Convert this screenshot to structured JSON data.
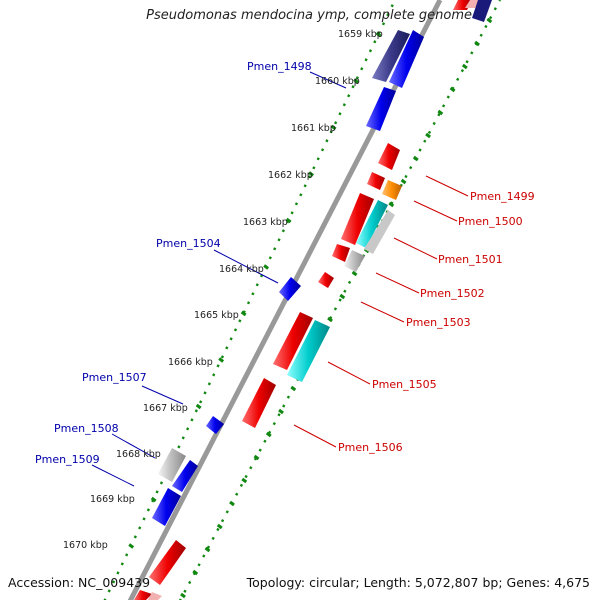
{
  "title": "Pseudomonas mendocina ymp, complete genome",
  "accession": "Accession: NC_009439",
  "summary": "Topology: circular; Length: 5,072,807 bp; Genes: 4,675",
  "colors": {
    "forward_gene": "#0000ee",
    "reverse_gene": "#ee0000",
    "rna_gene": "#00cccc",
    "other_gene": "#ff8c00",
    "pseudo_gene": "#bbbbbb",
    "dark_gene": "#2a2a8a",
    "backbone": "#888888",
    "dotted_ring": "#118811",
    "label_forward": "#0000aa",
    "label_reverse": "#cc0000"
  },
  "kbp_ticks": [
    "1659 kbp",
    "1660 kbp",
    "1661 kbp",
    "1662 kbp",
    "1663 kbp",
    "1664 kbp",
    "1665 kbp",
    "1666 kbp",
    "1667 kbp",
    "1668 kbp",
    "1669 kbp",
    "1670 kbp"
  ],
  "gene_labels_forward": [
    "Pmen_1498",
    "Pmen_1504",
    "Pmen_1507",
    "Pmen_1508",
    "Pmen_1509"
  ],
  "gene_labels_reverse": [
    "Pmen_1499",
    "Pmen_1500",
    "Pmen_1501",
    "Pmen_1502",
    "Pmen_1503",
    "Pmen_1505",
    "Pmen_1506"
  ]
}
